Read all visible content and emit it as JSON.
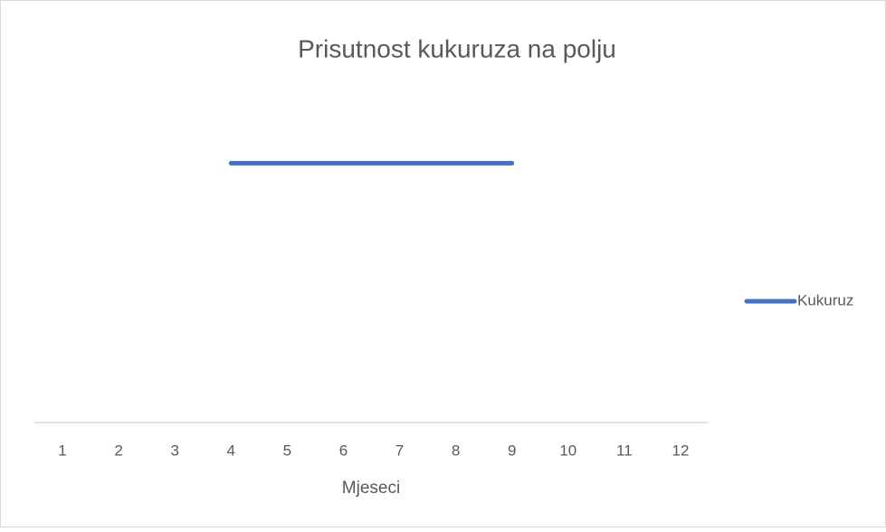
{
  "chart_data": {
    "type": "line",
    "title": "Prisutnost kukuruza na polju",
    "x_label": "Mjeseci",
    "categories": [
      "1",
      "2",
      "3",
      "4",
      "5",
      "6",
      "7",
      "8",
      "9",
      "10",
      "11",
      "12"
    ],
    "series": [
      {
        "name": "Kukuruz",
        "color": "#4472c4",
        "values": [
          null,
          null,
          null,
          1,
          1,
          1,
          1,
          1,
          1,
          null,
          null,
          null
        ]
      }
    ],
    "ylim": [
      0,
      1.2
    ],
    "grid": false,
    "legend": "right"
  }
}
